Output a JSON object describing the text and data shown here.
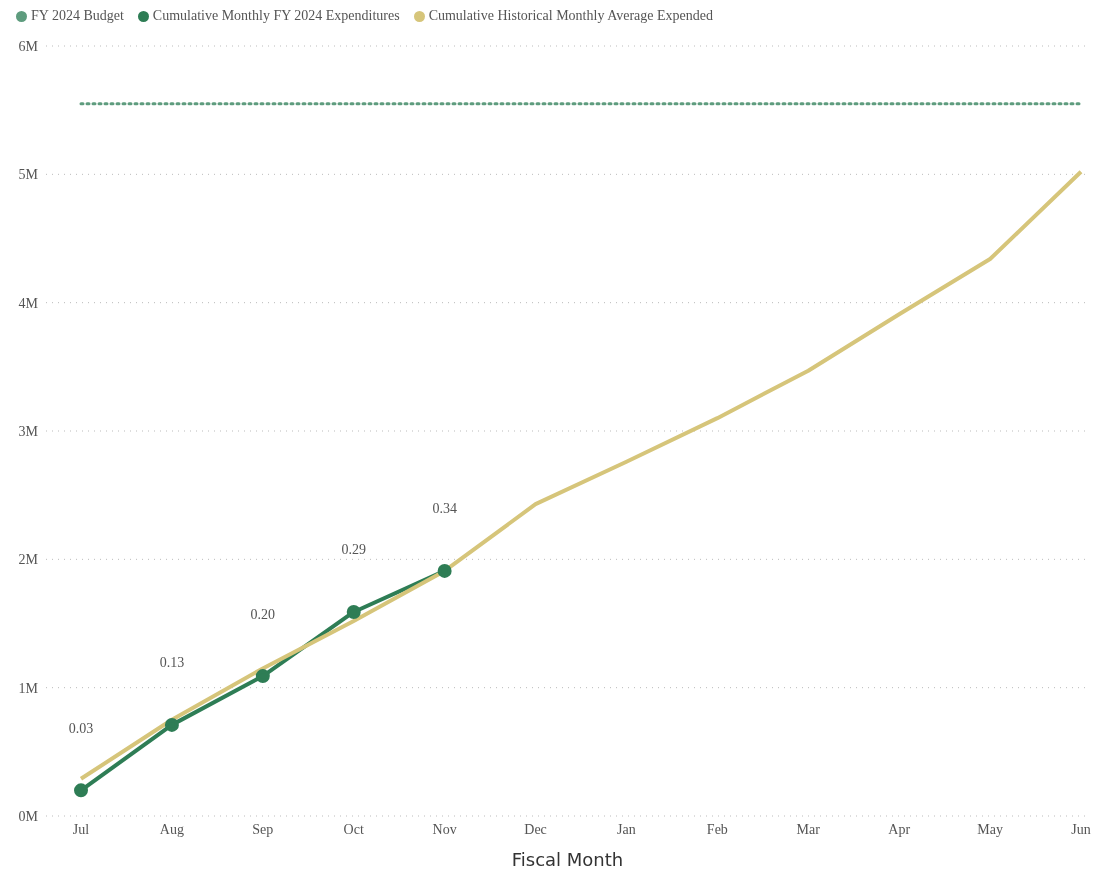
{
  "chart_data": {
    "type": "line",
    "xlabel": "Fiscal Month",
    "categories": [
      "Jul",
      "Aug",
      "Sep",
      "Oct",
      "Nov",
      "Dec",
      "Jan",
      "Feb",
      "Mar",
      "Apr",
      "May",
      "Jun"
    ],
    "series": [
      {
        "name": "FY 2024 Budget",
        "color": "#5e9c7e",
        "line_style": "dotted",
        "marker": "none",
        "values": [
          5.55,
          5.55,
          5.55,
          5.55,
          5.55,
          5.55,
          5.55,
          5.55,
          5.55,
          5.55,
          5.55,
          5.55
        ]
      },
      {
        "name": "Cumulative Monthly FY 2024 Expenditures",
        "color": "#2e7d55",
        "marker": "circle",
        "line_style": "solid",
        "values": [
          0.2,
          0.71,
          1.09,
          1.59,
          1.91,
          null,
          null,
          null,
          null,
          null,
          null,
          null
        ]
      },
      {
        "name": "Cumulative Historical Monthly Average Expended",
        "color": "#d6c57a",
        "marker": "none",
        "line_style": "solid",
        "values": [
          0.29,
          0.75,
          1.15,
          1.52,
          1.91,
          2.43,
          2.76,
          3.1,
          3.47,
          3.91,
          4.34,
          5.02
        ]
      }
    ],
    "ylim": [
      0,
      6
    ],
    "yticks": [
      {
        "value": 0,
        "label": "0M"
      },
      {
        "value": 1,
        "label": "1M"
      },
      {
        "value": 2,
        "label": "2M"
      },
      {
        "value": 3,
        "label": "3M"
      },
      {
        "value": 4,
        "label": "4M"
      },
      {
        "value": 5,
        "label": "5M"
      },
      {
        "value": 6,
        "label": "6M"
      }
    ],
    "annotations": [
      "0.03",
      "0.13",
      "0.20",
      "0.29",
      "0.34"
    ],
    "grid": "y",
    "legend": "top left"
  }
}
